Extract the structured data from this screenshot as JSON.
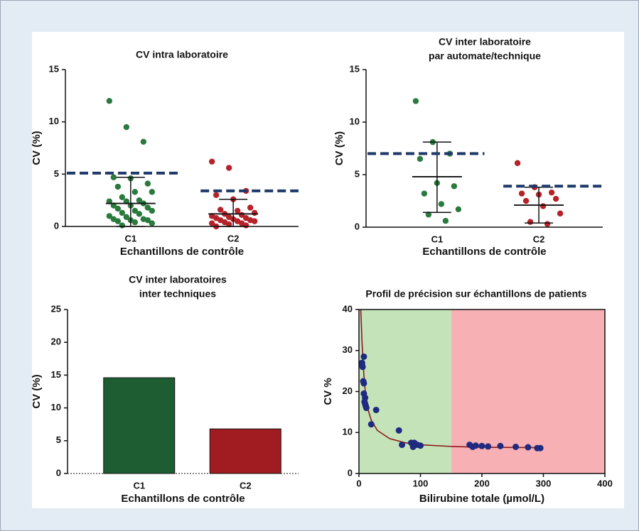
{
  "chart_data": [
    {
      "type": "strip",
      "title": "CV intra laboratoire",
      "ylabel": "CV (%)",
      "xlabel": "Echantillons de contrôle",
      "categories": [
        "C1",
        "C2"
      ],
      "colors": [
        "#2a7a3e",
        "#b5232a"
      ],
      "threshold_color": "#1f3a6a",
      "values": [
        [
          12.0,
          9.5,
          8.1,
          4.7,
          4.6,
          4.1,
          3.8,
          3.3,
          3.3,
          2.8,
          2.5,
          2.4,
          2.4,
          2.2,
          2.0,
          2.0,
          1.8,
          1.7,
          1.5,
          1.5,
          1.3,
          1.2,
          1.0,
          0.9,
          0.7,
          0.7,
          0.6,
          0.6,
          0.5,
          0.4,
          0.3,
          0.1
        ],
        [
          6.2,
          5.6,
          3.4,
          3.0,
          2.6,
          1.8,
          1.6,
          1.5,
          1.3,
          1.2,
          1.1,
          1.0,
          0.9,
          0.8,
          0.8,
          0.7,
          0.6,
          0.6,
          0.5,
          0.5,
          0.4,
          0.3,
          0.3,
          0.2,
          0.1,
          0.0
        ]
      ],
      "means": [
        2.2,
        1.2
      ],
      "err_low": [
        0.0,
        0.0
      ],
      "err_high": [
        4.7,
        2.6
      ],
      "thresholds": [
        5.1,
        3.4
      ],
      "ylim": [
        0,
        15
      ],
      "yticks": [
        0,
        5,
        10,
        15
      ]
    },
    {
      "type": "strip",
      "title": [
        "CV inter laboratoire",
        "par automate/technique"
      ],
      "ylabel": "CV (%)",
      "xlabel": "Echantillons de contrôle",
      "categories": [
        "C1",
        "C2"
      ],
      "colors": [
        "#2a7a3e",
        "#b5232a"
      ],
      "threshold_color": "#1f3a6a",
      "values": [
        [
          12.0,
          8.1,
          7.0,
          6.5,
          4.2,
          3.9,
          3.2,
          2.2,
          1.7,
          1.2,
          0.6
        ],
        [
          6.1,
          3.8,
          3.3,
          3.2,
          3.1,
          2.7,
          2.5,
          2.0,
          1.3,
          0.5,
          0.3
        ]
      ],
      "means": [
        4.8,
        2.1
      ],
      "err_low": [
        1.4,
        0.4
      ],
      "err_high": [
        8.1,
        3.8
      ],
      "thresholds": [
        7.0,
        3.9
      ],
      "ylim": [
        0,
        15
      ],
      "yticks": [
        0,
        5,
        10,
        15
      ]
    },
    {
      "type": "bar",
      "title": [
        "CV inter laboratoires",
        "inter techniques"
      ],
      "ylabel": "CV (%)",
      "xlabel": "Echantillons de contrôle",
      "categories": [
        "C1",
        "C2"
      ],
      "values": [
        14.6,
        6.8
      ],
      "colors": [
        "#1e5c32",
        "#a01c20"
      ],
      "ylim": [
        0,
        25
      ],
      "yticks": [
        0,
        5,
        10,
        15,
        20,
        25
      ]
    },
    {
      "type": "scatter",
      "title": "Profil de précision sur échantillons de patients",
      "ylabel": "CV %",
      "xlabel": "Bilirubine totale (µmol/L)",
      "x": [
        5,
        5,
        6,
        8,
        7,
        8,
        8,
        10,
        9,
        10,
        11,
        12,
        20,
        28,
        65,
        70,
        85,
        88,
        90,
        95,
        100,
        180,
        185,
        190,
        200,
        210,
        230,
        255,
        275,
        290,
        295
      ],
      "y": [
        27,
        26.5,
        26,
        28.5,
        22.5,
        22,
        19.5,
        18.5,
        17.5,
        17,
        16.5,
        16,
        12,
        15.5,
        10.5,
        7,
        7.5,
        6.5,
        7.5,
        7,
        6.8,
        7,
        6.5,
        6.8,
        6.7,
        6.6,
        6.7,
        6.5,
        6.4,
        6.2,
        6.2
      ],
      "color": "#1f2a80",
      "curve": {
        "x": [
          3,
          5,
          8,
          10,
          15,
          20,
          30,
          50,
          75,
          100,
          150,
          200,
          300
        ],
        "y": [
          40,
          32,
          24,
          20.5,
          15.5,
          13,
          10.5,
          8.5,
          7.5,
          7,
          6.6,
          6.4,
          6.3
        ],
        "color": "#8b1a1a"
      },
      "regions": [
        {
          "from": 0,
          "to": 150,
          "color": "#c5e3b8"
        },
        {
          "from": 150,
          "to": 400,
          "color": "#f7b0b3"
        }
      ],
      "xlim": [
        0,
        400
      ],
      "xticks": [
        0,
        100,
        200,
        300,
        400
      ],
      "ylim": [
        0,
        40
      ],
      "yticks": [
        0,
        10,
        20,
        30,
        40
      ]
    }
  ]
}
